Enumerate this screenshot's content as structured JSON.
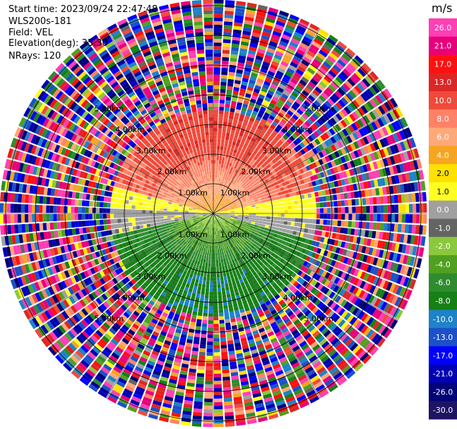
{
  "header": {
    "start_time": "Start time: 2023/09/24 22:47:48",
    "instrument": "WLS200s-181",
    "field": "Field: VEL",
    "elevation": "Elevation(deg): 35.30",
    "nrays": "NRays: 120"
  },
  "chart_data": {
    "type": "heatmap",
    "projection": "polar-ppi",
    "field": "VEL",
    "n_rays": 120,
    "ring_labels": [
      "1.00km",
      "2.00km",
      "3.00km",
      "4.00km",
      "5.00km"
    ],
    "range_km": [
      0,
      7.2
    ],
    "clean_range_km": 3.5,
    "colorbar": {
      "unit": "m/s",
      "ticks": [
        "26.0",
        "21.0",
        "17.0",
        "13.0",
        "10.0",
        "8.0",
        "6.0",
        "4.0",
        "2.0",
        "1.0",
        "0.0",
        "-1.0",
        "-2.0",
        "-4.0",
        "-6.0",
        "-8.0",
        "-10.0",
        "-13.0",
        "-17.0",
        "-21.0",
        "-26.0",
        "-30.0"
      ],
      "colors": [
        "#ff3fb4",
        "#e8007a",
        "#ff1010",
        "#dd2626",
        "#f04a3a",
        "#ff8266",
        "#ffa878",
        "#f7a520",
        "#ffe000",
        "#ffff20",
        "#a0a0a0",
        "#646464",
        "#8cc83c",
        "#50a020",
        "#2e8c2e",
        "#168016",
        "#1e82c8",
        "#1c50c8",
        "#0000ff",
        "#0000b4",
        "#000078",
        "#1e1464"
      ]
    }
  }
}
